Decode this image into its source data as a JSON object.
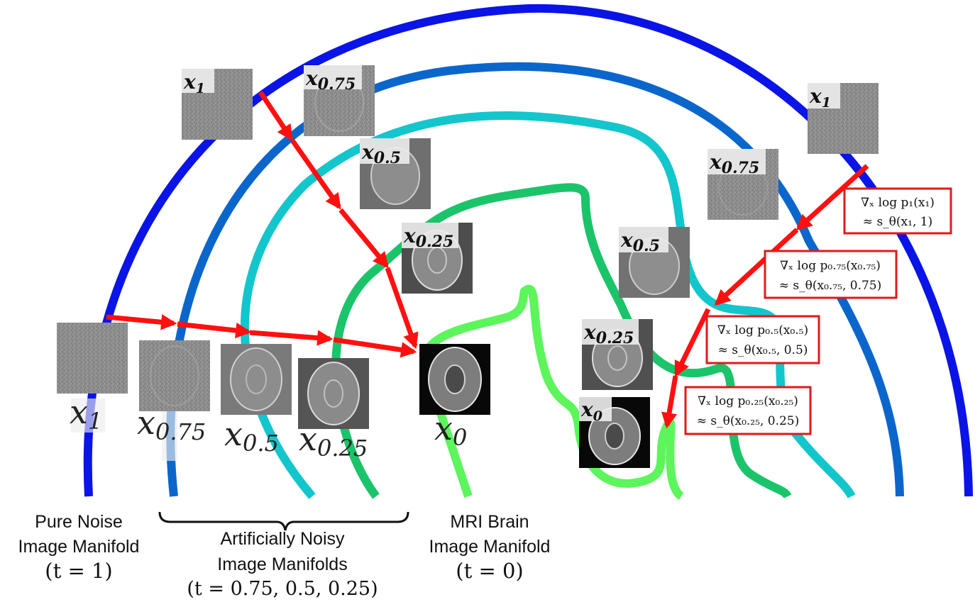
{
  "colors": {
    "t1": "#0a14e6",
    "t075": "#0b66cc",
    "t05": "#13c6cc",
    "t025": "#1bc46a",
    "t0": "#5cf55c",
    "arrow": "#ff1010",
    "box_border": "#e01a1a"
  },
  "icons": {
    "image": "brain-mri-image"
  },
  "left_path": {
    "labels": [
      {
        "base": "x",
        "sub": "1"
      },
      {
        "base": "x",
        "sub": "0.75"
      },
      {
        "base": "x",
        "sub": "0.5"
      },
      {
        "base": "x",
        "sub": "0.25"
      },
      {
        "base": "x",
        "sub": "0"
      }
    ]
  },
  "top_path": {
    "labels": [
      {
        "base": "x",
        "sub": "1"
      },
      {
        "base": "x",
        "sub": "0.75"
      },
      {
        "base": "x",
        "sub": "0.5"
      },
      {
        "base": "x",
        "sub": "0.25"
      }
    ]
  },
  "right_path": {
    "labels": [
      {
        "base": "x",
        "sub": "1"
      },
      {
        "base": "x",
        "sub": "0.75"
      },
      {
        "base": "x",
        "sub": "0.5"
      },
      {
        "base": "x",
        "sub": "0.25"
      },
      {
        "base": "x",
        "sub": "0"
      }
    ],
    "score_boxes": [
      {
        "line1": "∇ₓ log p₁(x₁)",
        "line2": "≈ s_θ(x₁, 1)"
      },
      {
        "line1": "∇ₓ log p₀.₇₅(x₀.₇₅)",
        "line2": "≈ s_θ(x₀.₇₅, 0.75)"
      },
      {
        "line1": "∇ₓ log p₀.₅(x₀.₅)",
        "line2": "≈ s_θ(x₀.₅, 0.5)"
      },
      {
        "line1": "∇ₓ log p₀.₂₅(x₀.₂₅)",
        "line2": "≈ s_θ(x₀.₂₅, 0.25)"
      }
    ]
  },
  "captions": {
    "noise": {
      "line1": "Pure Noise",
      "line2": "Image Manifold",
      "line3": "(t = 1)"
    },
    "noisy": {
      "line1": "Artificially Noisy",
      "line2": "Image Manifolds",
      "line3": "(t = 0.75, 0.5, 0.25)"
    },
    "mri": {
      "line1": "MRI Brain",
      "line2": "Image Manifold",
      "line3": "(t = 0)"
    }
  }
}
